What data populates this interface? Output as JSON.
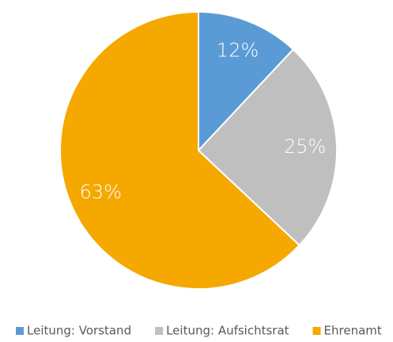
{
  "chart_data": {
    "type": "pie",
    "categories": [
      "Leitung: Vorstand",
      "Leitung: Aufsichtsrat",
      "Ehrenamt"
    ],
    "values": [
      12,
      25,
      63
    ],
    "value_labels": [
      "12%",
      "25%",
      "63%"
    ],
    "colors": [
      "#5b9bd5",
      "#bfbfbf",
      "#f5a800"
    ],
    "legend": "bottom"
  }
}
